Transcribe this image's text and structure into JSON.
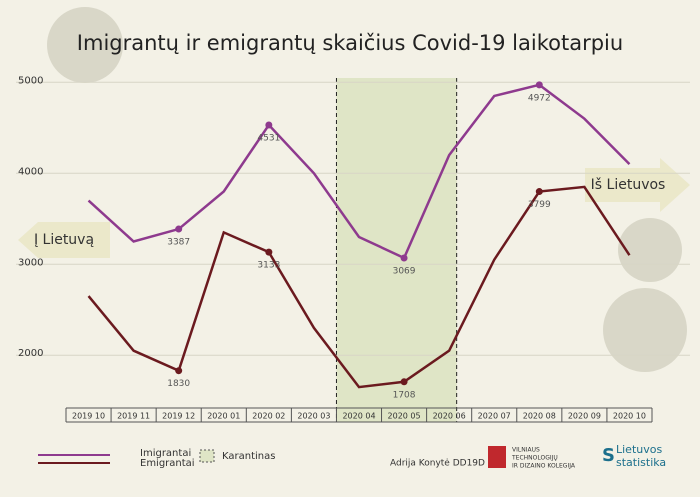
{
  "chart_data": {
    "type": "line",
    "title": "Imigrantų ir emigrantų skaičius Covid-19 laikotarpiu",
    "categories": [
      "2019 10",
      "2019 11",
      "2019 12",
      "2020 01",
      "2020 02",
      "2020 03",
      "2020 04",
      "2020 05",
      "2020 06",
      "2020 07",
      "2020 08",
      "2020 09",
      "2020 10"
    ],
    "series": [
      {
        "name": "Imigrantai",
        "color": "#8e3a8e",
        "values": [
          3700,
          3250,
          3387,
          3800,
          4531,
          4000,
          3300,
          3069,
          4200,
          4850,
          4972,
          4600,
          4100
        ],
        "value_labels": [
          null,
          null,
          "3387",
          null,
          "4531",
          null,
          null,
          "3069",
          null,
          null,
          "4972",
          null,
          null
        ]
      },
      {
        "name": "Emigrantai",
        "color": "#6b1a1f",
        "values": [
          2650,
          2050,
          1830,
          3350,
          3133,
          2300,
          1650,
          1708,
          2050,
          3050,
          3799,
          3850,
          3100
        ],
        "value_labels": [
          null,
          null,
          "1830",
          null,
          "3133",
          null,
          null,
          "1708",
          null,
          null,
          "3799",
          null,
          null
        ]
      }
    ],
    "ylim": [
      1420,
      5300
    ],
    "yticks": [
      2000,
      3000,
      4000,
      5000
    ],
    "grid": true,
    "shaded_region": {
      "label": "Karantinas",
      "from": "2020 04",
      "to": "2020 06"
    },
    "annotations": {
      "left_arrow": "Į Lietuvą",
      "right_arrow": "Iš Lietuvos"
    },
    "footer": {
      "author": "Adrija Konytė DD19D",
      "college": [
        "VILNIAUS",
        "TECHNOLOGIJŲ",
        "IR DIZAINO KOLEGIJA"
      ],
      "stat": [
        "Lietuvos",
        "statistika"
      ]
    }
  }
}
